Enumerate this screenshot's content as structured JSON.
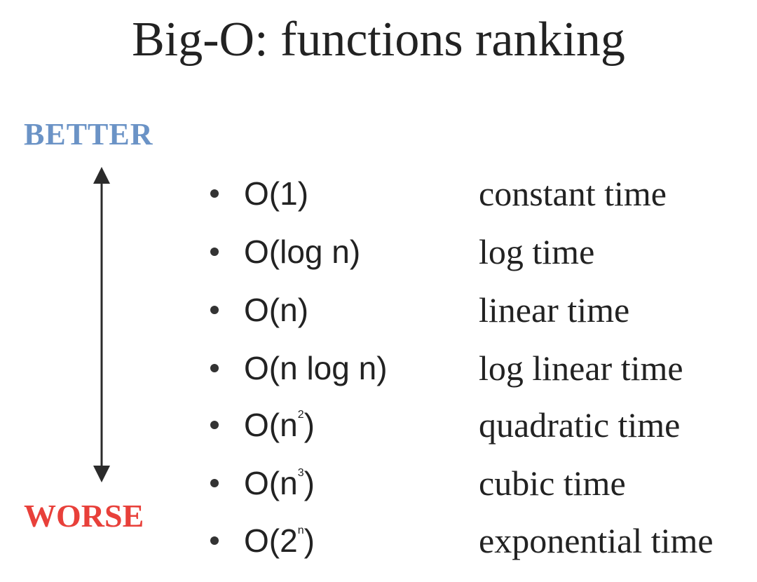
{
  "title": "Big-O: functions ranking",
  "direction": {
    "better_label": "BETTER",
    "worse_label": "WORSE",
    "better_color": "#6b93c6",
    "worse_color": "#e8403a",
    "arrow_color": "#2b2b2b"
  },
  "functions": [
    {
      "base": "O(1)",
      "prefix": "O(1",
      "exponent": "",
      "suffix": ")",
      "description": "constant time"
    },
    {
      "base": "O(log n)",
      "prefix": "O(log n",
      "exponent": "",
      "suffix": ")",
      "description": "log time"
    },
    {
      "base": "O(n)",
      "prefix": "O(n",
      "exponent": "",
      "suffix": ")",
      "description": "linear time"
    },
    {
      "base": "O(n log n)",
      "prefix": "O(n log n",
      "exponent": "",
      "suffix": ")",
      "description": "log linear time"
    },
    {
      "base": "O(n2)",
      "prefix": "O(n",
      "exponent": "2",
      "suffix": ")",
      "description": "quadratic time"
    },
    {
      "base": "O(n3)",
      "prefix": "O(n",
      "exponent": "3",
      "suffix": ")",
      "description": "cubic time"
    },
    {
      "base": "O(2n)",
      "prefix": "O(2",
      "exponent": "n",
      "suffix": ")",
      "description": "exponential time"
    }
  ]
}
